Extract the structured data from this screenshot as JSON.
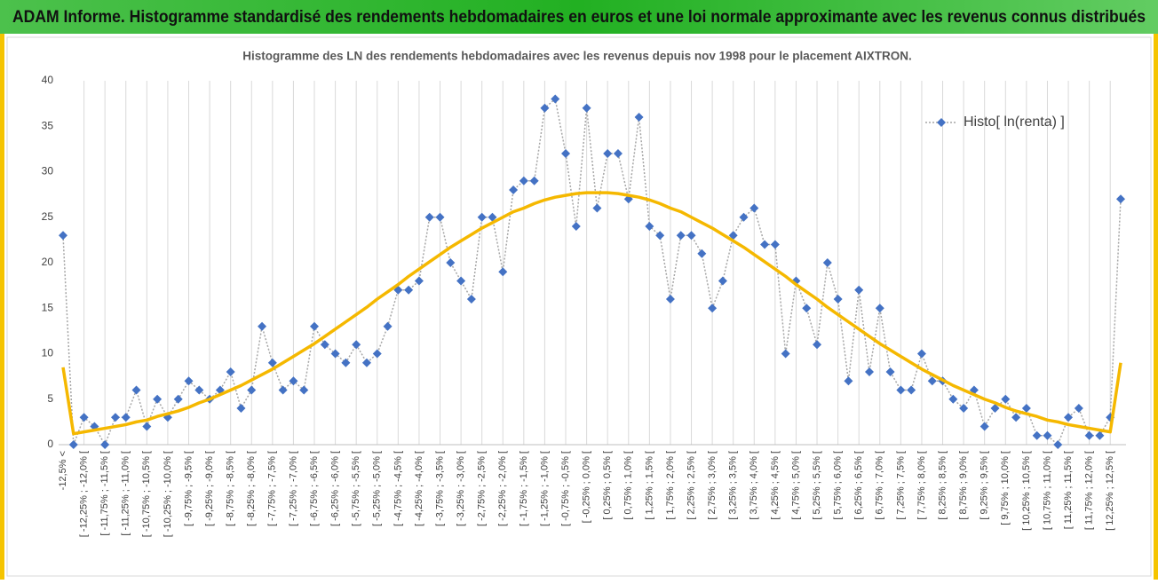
{
  "header": {
    "title": "ADAM Informe. Histogramme standardisé des rendements hebdomadaires en euros et une loi normale approximante avec les revenus connus distribués"
  },
  "chart_data": {
    "type": "line",
    "title": "Histogramme des LN des rendements hebdomadaires avec les revenus depuis nov 1998 pour le placement AIXTRON.",
    "categories": [
      "-12,5% <",
      null,
      "[ -12,25% ; -12,0% [",
      null,
      "[ -11,75% ; -11,5% [",
      null,
      "[ -11,25% ; -11,0% [",
      null,
      "[ -10,75% ; -10,5% [",
      null,
      "[ -10,25% ; -10,0% [",
      null,
      "[ -9,75% ; -9,5% [",
      null,
      "[ -9,25% ; -9,0% [",
      null,
      "[ -8,75% ; -8,5% [",
      null,
      "[ -8,25% ; -8,0% [",
      null,
      "[ -7,75% ; -7,5% [",
      null,
      "[ -7,25% ; -7,0% [",
      null,
      "[ -6,75% ; -6,5% [",
      null,
      "[ -6,25% ; -6,0% [",
      null,
      "[ -5,75% ; -5,5% [",
      null,
      "[ -5,25% ; -5,0% [",
      null,
      "[ -4,75% ; -4,5% [",
      null,
      "[ -4,25% ; -4,0% [",
      null,
      "[ -3,75% ; -3,5% [",
      null,
      "[ -3,25% ; -3,0% [",
      null,
      "[ -2,75% ; -2,5% [",
      null,
      "[ -2,25% ; -2,0% [",
      null,
      "[ -1,75% ; -1,5% [",
      null,
      "[ -1,25% ; -1,0% [",
      null,
      "[ -0,75% ; -0,5% [",
      null,
      "[ -0,25% ; 0,0% [",
      null,
      "[ 0,25% ; 0,5% [",
      null,
      "[ 0,75% ; 1,0% [",
      null,
      "[ 1,25% ; 1,5% [",
      null,
      "[ 1,75% ; 2,0% [",
      null,
      "[ 2,25% ; 2,5% [",
      null,
      "[ 2,75% ; 3,0% [",
      null,
      "[ 3,25% ; 3,5% [",
      null,
      "[ 3,75% ; 4,0% [",
      null,
      "[ 4,25% ; 4,5% [",
      null,
      "[ 4,75% ; 5,0% [",
      null,
      "[ 5,25% ; 5,5% [",
      null,
      "[ 5,75% ; 6,0% [",
      null,
      "[ 6,25% ; 6,5% [",
      null,
      "[ 6,75% ; 7,0% [",
      null,
      "[ 7,25% ; 7,5% [",
      null,
      "[ 7,75% ; 8,0% [",
      null,
      "[ 8,25% ; 8,5% [",
      null,
      "[ 8,75% ; 9,0% [",
      null,
      "[ 9,25% ; 9,5% [",
      null,
      "[ 9,75% ; 10,0% [",
      null,
      "[ 10,25% ; 10,5% [",
      null,
      "[ 10,75% ; 11,0% [",
      null,
      "[ 11,25% ; 11,5% [",
      null,
      "[ 11,75% ; 12,0% [",
      null,
      "[ 12,25% ; 12,5% [",
      null
    ],
    "series": [
      {
        "name": "Histo[ ln(renta) ]",
        "color": "#4472c4",
        "line_color": "#a6a6a6",
        "values": [
          23,
          0,
          3,
          2,
          0,
          3,
          3,
          6,
          2,
          5,
          3,
          5,
          7,
          6,
          5,
          6,
          8,
          4,
          6,
          13,
          9,
          6,
          7,
          6,
          13,
          11,
          10,
          9,
          11,
          9,
          10,
          13,
          17,
          17,
          18,
          25,
          25,
          20,
          18,
          16,
          25,
          25,
          19,
          28,
          29,
          29,
          37,
          38,
          32,
          24,
          37,
          26,
          32,
          32,
          27,
          36,
          24,
          23,
          16,
          23,
          23,
          21,
          15,
          18,
          23,
          25,
          26,
          22,
          22,
          10,
          18,
          15,
          11,
          20,
          16,
          7,
          17,
          8,
          15,
          8,
          6,
          6,
          10,
          7,
          7,
          5,
          4,
          6,
          2,
          4,
          5,
          3,
          4,
          1,
          1,
          0,
          3,
          4,
          1,
          1,
          3,
          27
        ]
      },
      {
        "color": "#f5b800",
        "values": [
          8.5,
          1.2,
          1.4,
          1.6,
          1.8,
          2.0,
          2.2,
          2.5,
          2.7,
          3.1,
          3.4,
          3.7,
          4.1,
          4.6,
          5.0,
          5.5,
          6.0,
          6.5,
          7.1,
          7.7,
          8.3,
          9.0,
          9.7,
          10.4,
          11.1,
          11.9,
          12.7,
          13.5,
          14.3,
          15.1,
          16.0,
          16.8,
          17.6,
          18.5,
          19.3,
          20.1,
          20.9,
          21.7,
          22.4,
          23.1,
          23.8,
          24.4,
          25.0,
          25.6,
          26.0,
          26.5,
          26.9,
          27.2,
          27.4,
          27.6,
          27.7,
          27.7,
          27.7,
          27.6,
          27.4,
          27.2,
          26.9,
          26.5,
          26.0,
          25.6,
          25.0,
          24.4,
          23.8,
          23.1,
          22.4,
          21.7,
          20.9,
          20.1,
          19.3,
          18.5,
          17.6,
          16.8,
          16.0,
          15.1,
          14.3,
          13.5,
          12.7,
          11.9,
          11.1,
          10.4,
          9.7,
          9.0,
          8.3,
          7.7,
          7.1,
          6.5,
          6.0,
          5.5,
          5.0,
          4.6,
          4.1,
          3.7,
          3.4,
          3.1,
          2.7,
          2.5,
          2.2,
          2.0,
          1.8,
          1.6,
          1.4,
          9.0
        ]
      }
    ],
    "ylim": [
      0,
      40
    ],
    "yticks": [
      0,
      5,
      10,
      15,
      20,
      25,
      30,
      35,
      40
    ],
    "grid": "x",
    "legend": "upper-right"
  }
}
